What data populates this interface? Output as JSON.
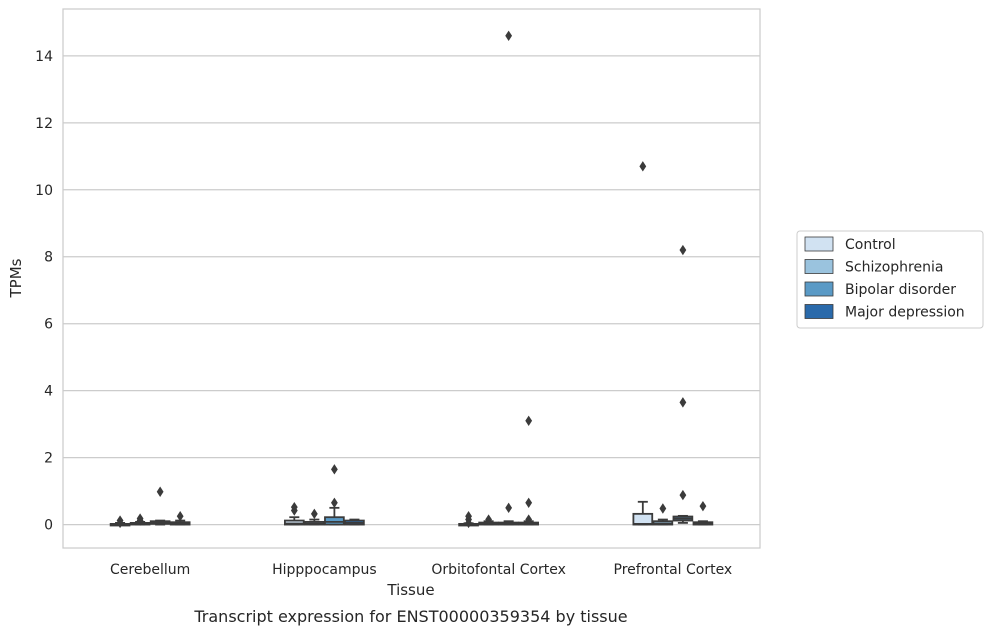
{
  "chart_data": {
    "type": "box",
    "title": "Transcript expression for ENST00000359354 by tissue",
    "xlabel": "Tissue",
    "ylabel": "TPMs",
    "ylim": [
      -0.7,
      15.4
    ],
    "yticks": [
      0,
      2,
      4,
      6,
      8,
      10,
      12,
      14
    ],
    "grid": "horizontal",
    "legend_position": "right",
    "categories": [
      "Cerebellum",
      "Hipppocampus",
      "Orbitofontal Cortex",
      "Prefrontal Cortex"
    ],
    "series": [
      {
        "name": "Control",
        "color": "#d1e2f2",
        "boxes": [
          {
            "q1": 0.0,
            "median": 0.0,
            "q3": 0.02,
            "whisker_low": 0.0,
            "whisker_high": 0.05,
            "outliers": [
              0.12,
              0.05
            ]
          },
          {
            "q1": 0.0,
            "median": 0.03,
            "q3": 0.12,
            "whisker_low": 0.0,
            "whisker_high": 0.22,
            "outliers": [
              0.42,
              0.52
            ]
          },
          {
            "q1": 0.0,
            "median": 0.0,
            "q3": 0.02,
            "whisker_low": 0.0,
            "whisker_high": 0.04,
            "outliers": [
              0.05,
              0.15,
              0.25
            ]
          },
          {
            "q1": 0.0,
            "median": 0.02,
            "q3": 0.32,
            "whisker_low": 0.0,
            "whisker_high": 0.68,
            "outliers": [
              10.7
            ]
          }
        ]
      },
      {
        "name": "Schizophrenia",
        "color": "#9ac3de",
        "boxes": [
          {
            "q1": 0.0,
            "median": 0.02,
            "q3": 0.05,
            "whisker_low": 0.0,
            "whisker_high": 0.08,
            "outliers": [
              0.12,
              0.18
            ]
          },
          {
            "q1": 0.0,
            "median": 0.03,
            "q3": 0.08,
            "whisker_low": 0.0,
            "whisker_high": 0.15,
            "outliers": [
              0.32
            ]
          },
          {
            "q1": 0.0,
            "median": 0.02,
            "q3": 0.06,
            "whisker_low": 0.0,
            "whisker_high": 0.1,
            "outliers": [
              0.15
            ]
          },
          {
            "q1": 0.0,
            "median": 0.03,
            "q3": 0.1,
            "whisker_low": 0.0,
            "whisker_high": 0.15,
            "outliers": [
              0.48
            ]
          }
        ]
      },
      {
        "name": "Bipolar disorder",
        "color": "#5a9ac6",
        "boxes": [
          {
            "q1": 0.02,
            "median": 0.05,
            "q3": 0.1,
            "whisker_low": 0.0,
            "whisker_high": 0.12,
            "outliers": [
              0.98
            ]
          },
          {
            "q1": 0.0,
            "median": 0.08,
            "q3": 0.22,
            "whisker_low": 0.0,
            "whisker_high": 0.5,
            "outliers": [
              0.65,
              1.65
            ]
          },
          {
            "q1": 0.0,
            "median": 0.03,
            "q3": 0.06,
            "whisker_low": 0.0,
            "whisker_high": 0.1,
            "outliers": [
              0.5,
              14.6
            ]
          },
          {
            "q1": 0.12,
            "median": 0.18,
            "q3": 0.24,
            "whisker_low": 0.05,
            "whisker_high": 0.26,
            "outliers": [
              0.88,
              3.65,
              8.2
            ]
          }
        ]
      },
      {
        "name": "Major depression",
        "color": "#2a6aab",
        "boxes": [
          {
            "q1": 0.0,
            "median": 0.03,
            "q3": 0.07,
            "whisker_low": 0.0,
            "whisker_high": 0.12,
            "outliers": [
              0.25
            ]
          },
          {
            "q1": 0.0,
            "median": 0.05,
            "q3": 0.12,
            "whisker_low": 0.0,
            "whisker_high": 0.15,
            "outliers": []
          },
          {
            "q1": 0.0,
            "median": 0.03,
            "q3": 0.06,
            "whisker_low": 0.0,
            "whisker_high": 0.1,
            "outliers": [
              0.15,
              0.65,
              3.1
            ]
          },
          {
            "q1": 0.0,
            "median": 0.03,
            "q3": 0.07,
            "whisker_low": 0.0,
            "whisker_high": 0.1,
            "outliers": [
              0.55
            ]
          }
        ]
      }
    ]
  }
}
